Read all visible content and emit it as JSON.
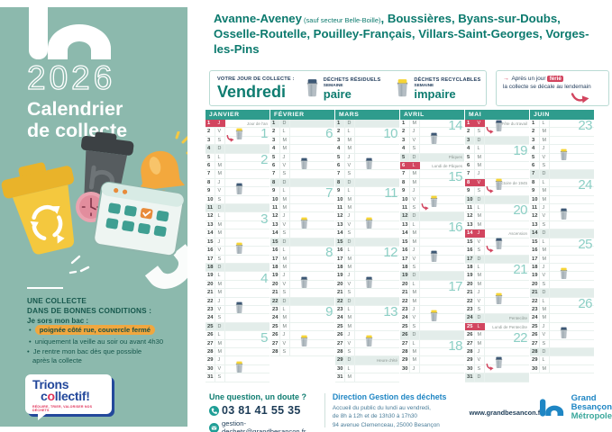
{
  "sidebar": {
    "year": "2026",
    "title_line1": "Calendrier",
    "title_line2": "de collecte",
    "conditions_title_line1": "UNE COLLECTE",
    "conditions_title_line2": "DANS DE BONNES CONDITIONS :",
    "intro": "Je sors mon bac :",
    "bullet1": "poignée côté rue, couvercle fermé",
    "bullet2": "uniquement la veille au soir ou avant 4h30",
    "bullet3_line1": "Je rentre mon bac dès que possible",
    "bullet3_line2": "après la collecte",
    "logo": {
      "word1": "Trions",
      "word2_pre": "c",
      "word2_o": "o",
      "word2_post": "llectif!",
      "tagline": "RÉDUIRE, TRIER, VALORISER NOS DÉCHETS"
    }
  },
  "header": {
    "commune_main": "Avanne-Aveney",
    "commune_note": " (sauf secteur Belle-Boille)",
    "communes_rest": ", Boussières, Byans-sur-Doubs, Osselle-Routelle, Pouilley-Français, Villars-Saint-Georges, Vorges-les-Pins"
  },
  "info_bar": {
    "day_label": "VOTRE JOUR DE COLLECTE :",
    "day_value": "Vendredi",
    "residual": {
      "label": "DÉCHETS RÉSIDUELS",
      "week_word": "SEMAINE",
      "week_value": "paire"
    },
    "recyclable": {
      "label": "DÉCHETS RECYCLABLES",
      "week_word": "SEMAINE",
      "week_value": "impaire"
    },
    "note": {
      "pre": "Après un jour",
      "badge": "férié",
      "post": "la collecte se décale au lendemain"
    }
  },
  "calendar": {
    "months": [
      {
        "name": "JANVIER",
        "days": "J V S D L M M J V S D L M M J V S D L M M J V S D L M M J V S",
        "holidays": [
          {
            "day": 1,
            "red": true,
            "label": "Jour de l'an"
          }
        ],
        "bins": [
          {
            "day": 2,
            "type": "recyclable",
            "shift": true
          },
          {
            "day": 9,
            "type": "residual"
          },
          {
            "day": 16,
            "type": "recyclable"
          },
          {
            "day": 23,
            "type": "residual"
          },
          {
            "day": 30,
            "type": "recyclable"
          }
        ],
        "weeks": [
          {
            "num": 1,
            "day": 2
          },
          {
            "num": 2,
            "day": 5
          },
          {
            "num": 3,
            "day": 12
          },
          {
            "num": 4,
            "day": 19
          },
          {
            "num": 5,
            "day": 26
          }
        ]
      },
      {
        "name": "FÉVRIER",
        "days": "D L M M J V S D L M M J V S D L M M J V S D L M M J V S",
        "holidays": [],
        "bins": [
          {
            "day": 6,
            "type": "residual"
          },
          {
            "day": 13,
            "type": "recyclable"
          },
          {
            "day": 20,
            "type": "residual"
          },
          {
            "day": 27,
            "type": "recyclable"
          }
        ],
        "weeks": [
          {
            "num": 6,
            "day": 2
          },
          {
            "num": 7,
            "day": 9
          },
          {
            "num": 8,
            "day": 16
          },
          {
            "num": 9,
            "day": 23
          }
        ]
      },
      {
        "name": "MARS",
        "days": "D L M M J V S D L M M J V S D L M M J V S D L M M J V S D L M",
        "holidays": [
          {
            "day": 29,
            "red": false,
            "label": "Heure d'été"
          }
        ],
        "bins": [
          {
            "day": 6,
            "type": "residual"
          },
          {
            "day": 13,
            "type": "recyclable"
          },
          {
            "day": 20,
            "type": "residual"
          },
          {
            "day": 27,
            "type": "recyclable"
          }
        ],
        "weeks": [
          {
            "num": 10,
            "day": 2
          },
          {
            "num": 11,
            "day": 9
          },
          {
            "num": 12,
            "day": 16
          },
          {
            "num": 13,
            "day": 23
          }
        ]
      },
      {
        "name": "AVRIL",
        "days": "M J V S D L M M J V S D L M M J V S D L M M J V S D L M M J",
        "holidays": [
          {
            "day": 5,
            "red": false,
            "label": "Pâques"
          },
          {
            "day": 6,
            "red": true,
            "label": "Lundi de Pâques"
          }
        ],
        "bins": [
          {
            "day": 3,
            "type": "residual"
          },
          {
            "day": 10,
            "type": "recyclable",
            "shift": true
          },
          {
            "day": 17,
            "type": "residual"
          },
          {
            "day": 24,
            "type": "recyclable"
          }
        ],
        "weeks": [
          {
            "num": 14,
            "day": 1
          },
          {
            "num": 15,
            "day": 7
          },
          {
            "num": 16,
            "day": 13
          },
          {
            "num": 17,
            "day": 20
          },
          {
            "num": 18,
            "day": 27
          }
        ]
      },
      {
        "name": "MAI",
        "days": "V S D L M M J V S D L M M J V S D L M M J V S D L M M J V S D",
        "holidays": [
          {
            "day": 1,
            "red": true,
            "label": "Fête du travail"
          },
          {
            "day": 8,
            "red": true,
            "label": "Victoire de 1945"
          },
          {
            "day": 14,
            "red": true,
            "label": "Ascension"
          },
          {
            "day": 24,
            "red": false,
            "label": "Pentecôte"
          },
          {
            "day": 25,
            "red": true,
            "label": "Lundi de Pentecôte"
          }
        ],
        "bins": [
          {
            "day": 1,
            "type": "residual",
            "shift": true
          },
          {
            "day": 8,
            "type": "recyclable",
            "shift": true
          },
          {
            "day": 15,
            "type": "residual",
            "shift": true
          },
          {
            "day": 22,
            "type": "recyclable"
          },
          {
            "day": 29,
            "type": "residual",
            "shift": true
          }
        ],
        "weeks": [
          {
            "num": 19,
            "day": 4
          },
          {
            "num": 20,
            "day": 11
          },
          {
            "num": 21,
            "day": 18
          },
          {
            "num": 22,
            "day": 26
          }
        ]
      },
      {
        "name": "JUIN",
        "days": "L M M J V S D L M M J V S D L M M J V S D L M M J V S D L M",
        "holidays": [],
        "bins": [
          {
            "day": 5,
            "type": "recyclable"
          },
          {
            "day": 12,
            "type": "residual"
          },
          {
            "day": 19,
            "type": "recyclable"
          },
          {
            "day": 26,
            "type": "residual"
          }
        ],
        "weeks": [
          {
            "num": 23,
            "day": 1
          },
          {
            "num": 24,
            "day": 8
          },
          {
            "num": 25,
            "day": 15
          },
          {
            "num": 26,
            "day": 22
          }
        ]
      }
    ]
  },
  "footer": {
    "question_title": "Une question, un doute ?",
    "phone": "03 81 41 55 35",
    "email": "gestion-dechets@grandbesancon.fr",
    "direction_title": "Direction Gestion des déchets",
    "address_line1": "Accueil du public du lundi au vendredi,",
    "address_line2": "de 8h à 12h et de 13h30 à 17h30",
    "address_line3": "94 avenue Clemenceau, 25000 Besançon",
    "website": "www.grandbesancon.fr",
    "logo": {
      "line1": "Grand",
      "line2": "Besançon",
      "line3": "Métropole"
    }
  },
  "colors": {
    "sidebar_bg": "#8cb9ad",
    "teal": "#0e7c70",
    "month_header": "#2f9c8d",
    "holiday_red": "#d2455f",
    "week_number": "#8ccfc5",
    "residual_lid": "#3d5875",
    "recyclable_lid": "#f6d435",
    "bin_body": "#b5bec4",
    "footer_blue": "#1f86c4",
    "highlight_pill": "#f0a73f"
  }
}
